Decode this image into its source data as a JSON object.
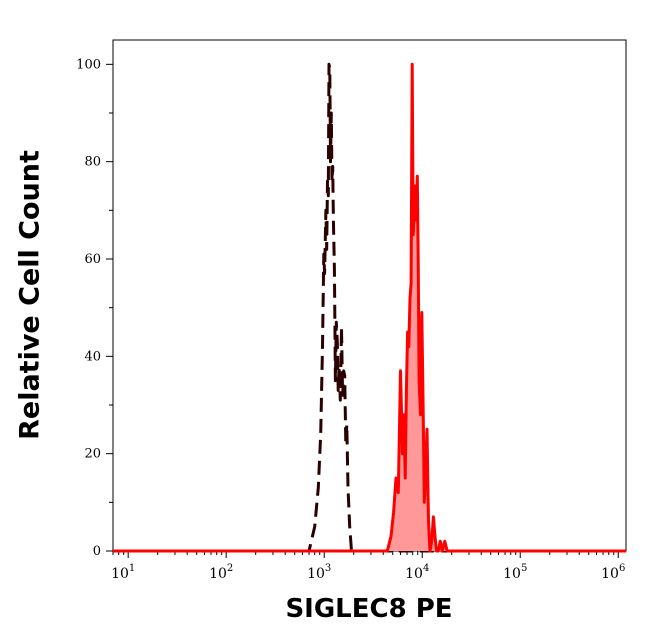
{
  "chart_data": {
    "type": "histogram",
    "title": "",
    "xlabel": "SIGLEC8 PE",
    "ylabel": "Relative Cell Count",
    "xscale": "log",
    "xlim": [
      7,
      1200000
    ],
    "ylim": [
      0,
      105
    ],
    "yticks": [
      0,
      20,
      40,
      60,
      80,
      100
    ],
    "xticks": [
      {
        "value": 10,
        "base": "10",
        "exp": "1"
      },
      {
        "value": 100,
        "base": "10",
        "exp": "2"
      },
      {
        "value": 1000,
        "base": "10",
        "exp": "3"
      },
      {
        "value": 10000,
        "base": "10",
        "exp": "4"
      },
      {
        "value": 100000,
        "base": "10",
        "exp": "5"
      },
      {
        "value": 1000000,
        "base": "10",
        "exp": "6"
      }
    ],
    "grid": false,
    "legend": "none",
    "series": [
      {
        "style": "dashed",
        "color": "#2b0000",
        "fill": "none",
        "x": [
          7,
          700,
          800,
          870,
          920,
          960,
          990,
          1010,
          1040,
          1060,
          1080,
          1100,
          1120,
          1140,
          1160,
          1180,
          1200,
          1220,
          1240,
          1270,
          1300,
          1330,
          1360,
          1390,
          1420,
          1460,
          1500,
          1540,
          1580,
          1620,
          1660,
          1700,
          1750,
          1820,
          1900,
          2000,
          1200000
        ],
        "y": [
          0,
          0,
          5,
          13,
          24,
          42,
          61,
          57,
          70,
          62,
          76,
          73,
          100,
          99,
          80,
          90,
          76,
          79,
          68,
          58,
          35,
          47,
          43,
          33,
          38,
          31,
          46,
          32,
          37,
          36,
          22,
          26,
          13,
          5,
          0,
          0,
          0
        ]
      },
      {
        "style": "solid",
        "color": "#ff0000",
        "fill": "#ff9999",
        "x": [
          7,
          4400,
          4800,
          5100,
          5400,
          5700,
          6000,
          6300,
          6500,
          6700,
          6900,
          7100,
          7300,
          7500,
          7700,
          7900,
          8100,
          8300,
          8500,
          8700,
          8900,
          9100,
          9300,
          9600,
          9900,
          10200,
          10500,
          10800,
          11200,
          11600,
          12000,
          12500,
          13000,
          13500,
          14000,
          14600,
          15300,
          16000,
          17000,
          18000,
          19000,
          1200000
        ],
        "y": [
          0,
          0,
          3,
          8,
          15,
          12,
          37,
          20,
          28,
          15,
          33,
          45,
          42,
          52,
          55,
          100,
          65,
          70,
          75,
          68,
          77,
          60,
          35,
          28,
          49,
          30,
          10,
          15,
          25,
          6,
          0,
          2,
          7,
          3,
          0,
          0,
          2,
          0,
          2,
          0,
          0,
          0
        ]
      }
    ]
  }
}
